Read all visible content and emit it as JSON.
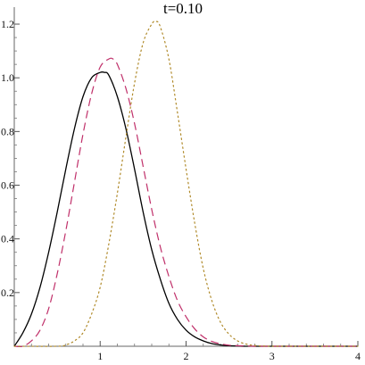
{
  "chart_data": {
    "type": "line",
    "title": "t=0.10",
    "xlabel": "",
    "ylabel": "",
    "xlim": [
      0,
      4
    ],
    "ylim": [
      0,
      1.23
    ],
    "xticks": [
      1,
      2,
      3,
      4
    ],
    "yticks": [
      0.2,
      0.4,
      0.6,
      0.8,
      1.0,
      1.2
    ],
    "xtick_labels": [
      "1",
      "2",
      "3",
      "4"
    ],
    "ytick_labels": [
      "0.2",
      "0.4",
      "0.6",
      "0.8",
      "1.0",
      "1.2"
    ],
    "grid": false,
    "series": [
      {
        "style": "solid",
        "color": "#000000",
        "x": [
          0,
          0.1,
          0.2,
          0.3,
          0.4,
          0.5,
          0.6,
          0.7,
          0.8,
          0.9,
          1.0,
          1.05,
          1.1,
          1.2,
          1.3,
          1.4,
          1.5,
          1.6,
          1.7,
          1.8,
          1.9,
          2.0,
          2.1,
          2.2,
          2.3,
          2.4,
          2.5,
          2.6,
          2.7,
          2.8,
          3.0,
          3.5,
          4.0
        ],
        "y": [
          0.0,
          0.05,
          0.12,
          0.22,
          0.35,
          0.5,
          0.66,
          0.81,
          0.93,
          1.0,
          1.02,
          1.02,
          1.01,
          0.93,
          0.81,
          0.66,
          0.5,
          0.36,
          0.25,
          0.16,
          0.1,
          0.06,
          0.035,
          0.02,
          0.01,
          0.005,
          0.002,
          0.001,
          0.0,
          0.0,
          0.0,
          0.0,
          0.0
        ]
      },
      {
        "style": "dashed",
        "color": "#c0306a",
        "x": [
          0,
          0.1,
          0.2,
          0.3,
          0.4,
          0.5,
          0.6,
          0.7,
          0.8,
          0.9,
          1.0,
          1.1,
          1.15,
          1.2,
          1.3,
          1.4,
          1.5,
          1.6,
          1.7,
          1.8,
          1.9,
          2.0,
          2.1,
          2.2,
          2.3,
          2.4,
          2.5,
          2.6,
          2.7,
          2.8,
          3.0,
          3.5,
          4.0
        ],
        "y": [
          0.0,
          0.0,
          0.02,
          0.06,
          0.14,
          0.27,
          0.43,
          0.61,
          0.79,
          0.94,
          1.04,
          1.07,
          1.07,
          1.05,
          0.96,
          0.83,
          0.67,
          0.51,
          0.37,
          0.26,
          0.17,
          0.11,
          0.065,
          0.035,
          0.018,
          0.009,
          0.004,
          0.002,
          0.001,
          0.0,
          0.0,
          0.0,
          0.0
        ]
      },
      {
        "style": "dotted",
        "color": "#b08a2a",
        "x": [
          0,
          0.5,
          0.6,
          0.7,
          0.8,
          0.9,
          1.0,
          1.1,
          1.2,
          1.3,
          1.4,
          1.5,
          1.6,
          1.65,
          1.7,
          1.8,
          1.9,
          2.0,
          2.1,
          2.2,
          2.3,
          2.4,
          2.5,
          2.6,
          2.7,
          2.8,
          2.9,
          3.0,
          3.5,
          4.0
        ],
        "y": [
          0.0,
          0.0,
          0.005,
          0.02,
          0.05,
          0.12,
          0.22,
          0.38,
          0.57,
          0.78,
          0.98,
          1.13,
          1.2,
          1.21,
          1.19,
          1.07,
          0.87,
          0.66,
          0.46,
          0.29,
          0.17,
          0.09,
          0.045,
          0.02,
          0.008,
          0.003,
          0.001,
          0.0,
          0.0,
          0.0
        ]
      }
    ]
  }
}
